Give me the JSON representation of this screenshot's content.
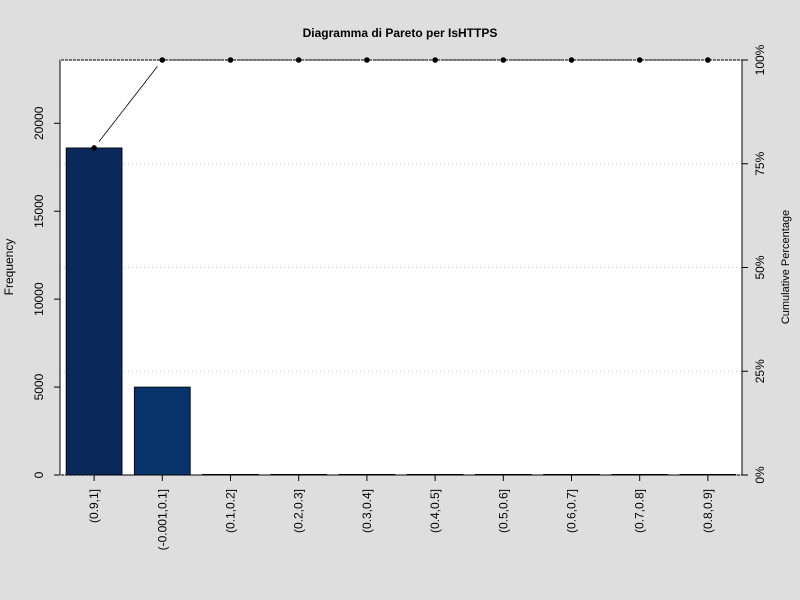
{
  "chart_data": {
    "type": "bar",
    "title": "Diagramma di Pareto per IsHTTPS",
    "ylabel": "Frequency",
    "ylabel_right": "Cumulative Percentage",
    "categories": [
      "(0.9,1]",
      "(-0.001,0.1]",
      "(0.1,0.2]",
      "(0.2,0.3]",
      "(0.3,0.4]",
      "(0.4,0.5]",
      "(0.5,0.6]",
      "(0.6,0.7]",
      "(0.7,0.8]",
      "(0.8,0.9]"
    ],
    "values": [
      18600,
      5000,
      0,
      0,
      0,
      0,
      0,
      0,
      0,
      0
    ],
    "cumulative_percent": [
      78.8,
      100,
      100,
      100,
      100,
      100,
      100,
      100,
      100,
      100
    ],
    "ylim": [
      0,
      23600
    ],
    "yticks": [
      0,
      5000,
      10000,
      15000,
      20000
    ],
    "yticks_right": [
      "0%",
      "25%",
      "50%",
      "75%",
      "100%"
    ],
    "bar_colors": [
      "#08295a",
      "#08336b",
      "#083d7b",
      "#0a4a8c",
      "#0c569c",
      "#1461a8",
      "#1c6cb2",
      "#2878bb",
      "#3585c0",
      "#4292c6"
    ],
    "grid": "horizontal-dotted",
    "line_color": "#000000"
  }
}
